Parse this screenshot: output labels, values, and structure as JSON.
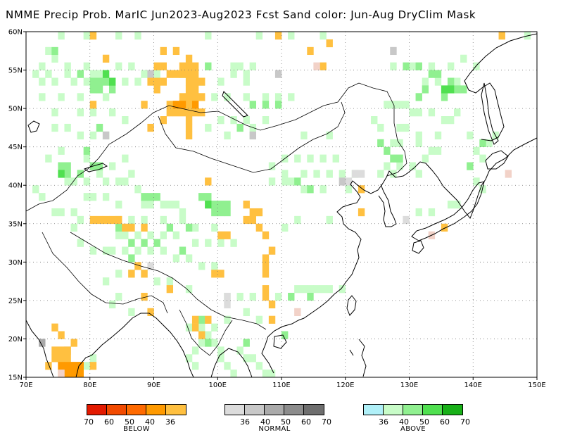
{
  "title": "NMME Precip Prob. MarIC  Jun2023-Aug2023 Fcst  Sand color: Jun-Aug DryClim Mask",
  "map": {
    "lon_range": [
      70,
      150
    ],
    "lat_range": [
      15,
      60
    ],
    "lon_ticks": [
      "70E",
      "80E",
      "90E",
      "100E",
      "110E",
      "120E",
      "130E",
      "140E",
      "150E"
    ],
    "lat_ticks": [
      "15N",
      "20N",
      "25N",
      "30N",
      "35N",
      "40N",
      "45N",
      "50N",
      "55N",
      "60N"
    ],
    "grid": "dotted"
  },
  "colors": {
    "below": [
      "#e31a00",
      "#f24a00",
      "#ff6a00",
      "#ff9a00",
      "#ffc040"
    ],
    "normal": [
      "#dcdcdc",
      "#c8c8c8",
      "#aaaaaa",
      "#8c8c8c",
      "#6e6e6e"
    ],
    "above": [
      "#b0f0f8",
      "#c8fcc8",
      "#90f090",
      "#50e050",
      "#18b018"
    ],
    "coast": "#000000",
    "sand": "#f2d2c8"
  },
  "legend": {
    "below": {
      "labels": [
        "70",
        "60",
        "50",
        "40",
        "36"
      ],
      "caption": "BELOW"
    },
    "normal": {
      "labels": [
        "36",
        "40",
        "50",
        "60",
        "70"
      ],
      "caption": "NORMAL"
    },
    "above": {
      "labels": [
        "36",
        "40",
        "50",
        "60",
        "70"
      ],
      "caption": "ABOVE"
    }
  },
  "cells": {
    "above_36": [
      [
        75,
        59
      ],
      [
        79,
        59
      ],
      [
        84,
        59
      ],
      [
        87,
        59
      ],
      [
        98,
        59
      ],
      [
        106,
        59
      ],
      [
        111,
        59
      ],
      [
        116,
        59
      ],
      [
        148,
        59
      ],
      [
        73,
        57
      ],
      [
        74,
        56
      ],
      [
        72,
        55
      ],
      [
        76,
        55
      ],
      [
        79,
        55
      ],
      [
        84,
        55
      ],
      [
        86,
        55
      ],
      [
        102,
        55
      ],
      [
        103,
        55
      ],
      [
        105,
        55
      ],
      [
        71,
        54
      ],
      [
        73,
        54
      ],
      [
        76,
        54
      ],
      [
        80,
        54
      ],
      [
        81,
        54
      ],
      [
        88,
        54
      ],
      [
        90,
        54
      ],
      [
        94,
        54
      ],
      [
        102,
        54
      ],
      [
        104,
        54
      ],
      [
        72,
        53
      ],
      [
        74,
        53
      ],
      [
        77,
        53
      ],
      [
        79,
        53
      ],
      [
        83,
        53
      ],
      [
        85,
        53
      ],
      [
        87,
        53
      ],
      [
        97,
        53
      ],
      [
        100,
        53
      ],
      [
        104,
        53
      ],
      [
        132,
        53
      ],
      [
        134,
        53
      ],
      [
        137,
        53
      ],
      [
        127,
        55
      ],
      [
        130,
        55
      ],
      [
        133,
        55
      ],
      [
        136,
        55
      ],
      [
        138,
        56
      ],
      [
        140,
        55
      ],
      [
        72,
        51
      ],
      [
        75,
        51
      ],
      [
        78,
        51
      ],
      [
        82,
        51
      ],
      [
        99,
        51
      ],
      [
        101,
        51
      ],
      [
        104,
        51
      ],
      [
        107,
        51
      ],
      [
        109,
        51
      ],
      [
        111,
        51
      ],
      [
        126,
        50
      ],
      [
        127,
        50
      ],
      [
        128,
        50
      ],
      [
        129,
        50
      ],
      [
        130,
        49
      ],
      [
        131,
        49
      ],
      [
        133,
        49
      ],
      [
        135,
        48
      ],
      [
        136,
        48
      ],
      [
        137,
        49
      ],
      [
        124,
        48
      ],
      [
        125,
        47
      ],
      [
        128,
        47
      ],
      [
        129,
        47
      ],
      [
        131,
        46
      ],
      [
        134,
        46
      ],
      [
        139,
        46
      ],
      [
        142,
        45
      ],
      [
        143,
        46
      ],
      [
        74,
        49
      ],
      [
        78,
        49
      ],
      [
        80,
        49
      ],
      [
        83,
        49
      ],
      [
        85,
        48
      ],
      [
        100,
        48
      ],
      [
        102,
        48
      ],
      [
        104,
        48
      ],
      [
        105,
        47
      ],
      [
        107,
        48
      ],
      [
        74,
        47
      ],
      [
        76,
        47
      ],
      [
        78,
        46
      ],
      [
        80,
        46
      ],
      [
        82,
        46
      ],
      [
        98,
        47
      ],
      [
        101,
        46
      ],
      [
        105,
        46
      ],
      [
        113,
        46
      ],
      [
        117,
        46
      ],
      [
        127,
        45
      ],
      [
        128,
        45
      ],
      [
        131,
        45
      ],
      [
        133,
        44
      ],
      [
        134,
        44
      ],
      [
        110,
        43
      ],
      [
        112,
        43
      ],
      [
        114,
        43
      ],
      [
        116,
        43
      ],
      [
        118,
        43
      ],
      [
        108,
        42
      ],
      [
        110,
        41
      ],
      [
        113,
        41
      ],
      [
        115,
        41
      ],
      [
        117,
        41
      ],
      [
        119,
        41
      ],
      [
        121,
        41
      ],
      [
        125,
        41
      ],
      [
        127,
        41
      ],
      [
        131,
        41
      ],
      [
        126,
        42
      ],
      [
        128,
        42
      ],
      [
        130,
        42
      ],
      [
        132,
        43
      ],
      [
        108,
        40
      ],
      [
        110,
        40
      ],
      [
        111,
        40
      ],
      [
        113,
        39
      ],
      [
        116,
        39
      ],
      [
        120,
        39
      ],
      [
        76,
        40
      ],
      [
        77,
        40
      ],
      [
        79,
        40
      ],
      [
        81,
        41
      ],
      [
        82,
        40
      ],
      [
        84,
        40
      ],
      [
        85,
        40
      ],
      [
        86,
        41
      ],
      [
        87,
        39
      ],
      [
        79,
        38
      ],
      [
        80,
        38
      ],
      [
        82,
        38
      ],
      [
        84,
        37
      ],
      [
        88,
        37
      ],
      [
        89,
        37
      ],
      [
        91,
        37
      ],
      [
        92,
        37
      ],
      [
        93,
        37
      ],
      [
        94,
        36
      ],
      [
        75,
        36
      ],
      [
        77,
        36
      ],
      [
        78,
        35
      ],
      [
        84,
        35
      ],
      [
        86,
        35
      ],
      [
        88,
        35
      ],
      [
        91,
        35
      ],
      [
        94,
        35
      ],
      [
        96,
        34
      ],
      [
        99,
        34
      ],
      [
        84,
        33
      ],
      [
        85,
        33
      ],
      [
        87,
        33
      ],
      [
        89,
        33
      ],
      [
        91,
        33
      ],
      [
        93,
        33
      ],
      [
        96,
        32
      ],
      [
        98,
        32
      ],
      [
        100,
        32
      ],
      [
        102,
        32
      ],
      [
        82,
        31
      ],
      [
        83,
        31
      ],
      [
        85,
        31
      ],
      [
        87,
        31
      ],
      [
        89,
        31
      ],
      [
        91,
        31
      ],
      [
        93,
        30
      ],
      [
        95,
        30
      ],
      [
        97,
        29
      ],
      [
        99,
        29
      ],
      [
        84,
        28
      ],
      [
        86,
        28
      ],
      [
        88,
        28
      ],
      [
        90,
        27
      ],
      [
        92,
        27
      ],
      [
        95,
        26
      ],
      [
        101,
        25
      ],
      [
        103,
        25
      ],
      [
        105,
        25
      ],
      [
        109,
        25
      ],
      [
        112,
        26
      ],
      [
        113,
        26
      ],
      [
        114,
        26
      ],
      [
        115,
        26
      ],
      [
        116,
        26
      ],
      [
        117,
        26
      ],
      [
        119,
        26
      ],
      [
        104,
        23
      ],
      [
        106,
        22
      ],
      [
        101,
        22
      ],
      [
        99,
        21
      ],
      [
        98,
        20
      ],
      [
        97,
        19
      ],
      [
        96,
        18
      ],
      [
        95,
        17
      ],
      [
        96,
        16
      ],
      [
        99,
        19
      ],
      [
        100,
        17
      ],
      [
        103,
        18
      ],
      [
        104,
        17
      ],
      [
        105,
        17
      ],
      [
        106,
        16
      ],
      [
        107,
        15
      ],
      [
        108,
        15
      ],
      [
        102,
        15
      ],
      [
        101,
        16
      ],
      [
        100,
        18
      ],
      [
        97,
        21
      ],
      [
        95,
        21
      ],
      [
        139,
        42
      ],
      [
        140,
        44
      ],
      [
        141,
        43
      ],
      [
        140,
        40
      ],
      [
        141,
        39
      ],
      [
        131,
        36
      ],
      [
        133,
        36
      ],
      [
        136,
        37
      ],
      [
        137,
        37
      ],
      [
        117,
        35
      ],
      [
        112,
        35
      ],
      [
        110,
        34
      ],
      [
        106,
        36
      ],
      [
        74,
        36
      ],
      [
        72,
        38
      ],
      [
        71,
        39
      ],
      [
        73,
        43
      ],
      [
        75,
        44
      ],
      [
        79,
        43
      ],
      [
        83,
        42
      ],
      [
        85,
        43
      ],
      [
        77,
        34
      ],
      [
        78,
        32
      ],
      [
        80,
        31
      ],
      [
        82,
        27
      ],
      [
        84,
        25
      ],
      [
        83,
        24
      ],
      [
        86,
        23
      ],
      [
        80,
        17
      ],
      [
        79,
        16
      ]
    ],
    "above_40": [
      [
        74,
        57
      ],
      [
        78,
        54
      ],
      [
        80,
        53
      ],
      [
        81,
        53
      ],
      [
        82,
        53
      ],
      [
        83,
        52
      ],
      [
        81,
        52
      ],
      [
        80,
        52
      ],
      [
        98,
        55
      ],
      [
        133,
        54
      ],
      [
        134,
        54
      ],
      [
        136,
        53
      ],
      [
        137,
        52
      ],
      [
        138,
        52
      ],
      [
        132,
        52
      ],
      [
        131,
        51
      ],
      [
        135,
        51
      ],
      [
        76,
        41
      ],
      [
        78,
        41
      ],
      [
        80,
        42
      ],
      [
        81,
        42
      ],
      [
        88,
        38
      ],
      [
        89,
        38
      ],
      [
        90,
        38
      ],
      [
        97,
        38
      ],
      [
        98,
        38
      ],
      [
        99,
        37
      ],
      [
        100,
        37
      ],
      [
        101,
        37
      ],
      [
        99,
        36
      ],
      [
        100,
        36
      ],
      [
        101,
        36
      ],
      [
        86,
        32
      ],
      [
        88,
        32
      ],
      [
        90,
        32
      ],
      [
        92,
        34
      ],
      [
        95,
        34
      ],
      [
        84,
        34
      ],
      [
        86,
        34
      ],
      [
        125,
        45
      ],
      [
        126,
        44
      ],
      [
        127,
        43
      ],
      [
        128,
        43
      ],
      [
        139,
        42
      ],
      [
        141,
        45
      ],
      [
        114,
        39
      ],
      [
        112,
        40
      ],
      [
        94,
        31
      ],
      [
        86,
        30
      ],
      [
        111,
        25
      ],
      [
        114,
        25
      ],
      [
        97,
        22
      ],
      [
        98,
        19
      ],
      [
        104,
        19
      ],
      [
        110,
        20
      ],
      [
        107,
        50
      ],
      [
        105,
        50
      ],
      [
        109,
        50
      ],
      [
        103,
        47
      ],
      [
        81,
        47
      ],
      [
        79,
        44
      ],
      [
        76,
        42
      ],
      [
        75,
        42
      ],
      [
        129,
        55
      ],
      [
        131,
        55
      ]
    ],
    "above_50": [
      [
        82,
        54
      ],
      [
        83,
        53
      ],
      [
        135,
        52
      ],
      [
        136,
        52
      ],
      [
        75,
        41
      ],
      [
        98,
        37
      ]
    ],
    "normal_36": [
      [
        89,
        29
      ],
      [
        87,
        29
      ],
      [
        101,
        25
      ],
      [
        101,
        24
      ],
      [
        108,
        31
      ],
      [
        121,
        41
      ],
      [
        122,
        41
      ],
      [
        120,
        40
      ],
      [
        129,
        35
      ]
    ],
    "normal_40": [
      [
        105,
        46
      ],
      [
        109,
        54
      ],
      [
        89,
        54
      ],
      [
        76,
        18
      ],
      [
        82,
        46
      ],
      [
        127,
        57
      ],
      [
        119,
        40
      ]
    ],
    "normal_50": [
      [
        72,
        19
      ]
    ],
    "below_36": [
      [
        80,
        59
      ],
      [
        109,
        59
      ],
      [
        117,
        58
      ],
      [
        114,
        57
      ],
      [
        82,
        56
      ],
      [
        116,
        55
      ],
      [
        91,
        57
      ],
      [
        93,
        57
      ],
      [
        95,
        56
      ],
      [
        90,
        55
      ],
      [
        91,
        55
      ],
      [
        94,
        55
      ],
      [
        95,
        55
      ],
      [
        96,
        55
      ],
      [
        92,
        54
      ],
      [
        93,
        54
      ],
      [
        94,
        54
      ],
      [
        95,
        54
      ],
      [
        96,
        54
      ],
      [
        89,
        53
      ],
      [
        90,
        53
      ],
      [
        91,
        53
      ],
      [
        95,
        53
      ],
      [
        96,
        53
      ],
      [
        97,
        53
      ],
      [
        90,
        52
      ],
      [
        95,
        52
      ],
      [
        96,
        52
      ],
      [
        94,
        51
      ],
      [
        95,
        51
      ],
      [
        96,
        51
      ],
      [
        97,
        51
      ],
      [
        92,
        50
      ],
      [
        93,
        50
      ],
      [
        94,
        50
      ],
      [
        95,
        50
      ],
      [
        92,
        49
      ],
      [
        93,
        49
      ],
      [
        94,
        49
      ],
      [
        95,
        49
      ],
      [
        96,
        49
      ],
      [
        97,
        49
      ],
      [
        91,
        48
      ],
      [
        95,
        48
      ],
      [
        95,
        47
      ],
      [
        95,
        46
      ],
      [
        98,
        40
      ],
      [
        104,
        37
      ],
      [
        105,
        36
      ],
      [
        106,
        36
      ],
      [
        104,
        35
      ],
      [
        105,
        35
      ],
      [
        106,
        34
      ],
      [
        100,
        33
      ],
      [
        101,
        33
      ],
      [
        107,
        33
      ],
      [
        108,
        31
      ],
      [
        107,
        30
      ],
      [
        107,
        29
      ],
      [
        107,
        28
      ],
      [
        107,
        26
      ],
      [
        107,
        25
      ],
      [
        108,
        24
      ],
      [
        108,
        22
      ],
      [
        74,
        21
      ],
      [
        75,
        20
      ],
      [
        77,
        19
      ],
      [
        74,
        18
      ],
      [
        75,
        18
      ],
      [
        76,
        18
      ],
      [
        74,
        17
      ],
      [
        75,
        17
      ],
      [
        76,
        17
      ],
      [
        75,
        16
      ],
      [
        76,
        16
      ],
      [
        77,
        16
      ],
      [
        78,
        16
      ],
      [
        80,
        16
      ],
      [
        73,
        16
      ],
      [
        86,
        34
      ],
      [
        85,
        34
      ],
      [
        88,
        34
      ],
      [
        87,
        29
      ],
      [
        86,
        28
      ],
      [
        88,
        28
      ],
      [
        92,
        26
      ],
      [
        88,
        25
      ],
      [
        89,
        23
      ],
      [
        96,
        22
      ],
      [
        96,
        21
      ],
      [
        98,
        22
      ],
      [
        97,
        20
      ],
      [
        135,
        34
      ],
      [
        122,
        36
      ],
      [
        122,
        39
      ],
      [
        82,
        35
      ],
      [
        83,
        35
      ],
      [
        84,
        35
      ],
      [
        80,
        35
      ],
      [
        81,
        35
      ],
      [
        99,
        28
      ],
      [
        100,
        28
      ],
      [
        88,
        50
      ],
      [
        144,
        59
      ],
      [
        80,
        50
      ],
      [
        89,
        47
      ]
    ],
    "below_40": [
      [
        93,
        50
      ],
      [
        94,
        50
      ],
      [
        96,
        50
      ],
      [
        75,
        16
      ],
      [
        76,
        16
      ],
      [
        77,
        16
      ],
      [
        78,
        16
      ],
      [
        75,
        15
      ],
      [
        76,
        15
      ],
      [
        77,
        15
      ],
      [
        78,
        15
      ]
    ],
    "sand": [
      [
        115,
        55
      ],
      [
        112,
        23
      ],
      [
        145,
        41
      ],
      [
        133,
        33
      ],
      [
        75,
        15
      ]
    ]
  }
}
